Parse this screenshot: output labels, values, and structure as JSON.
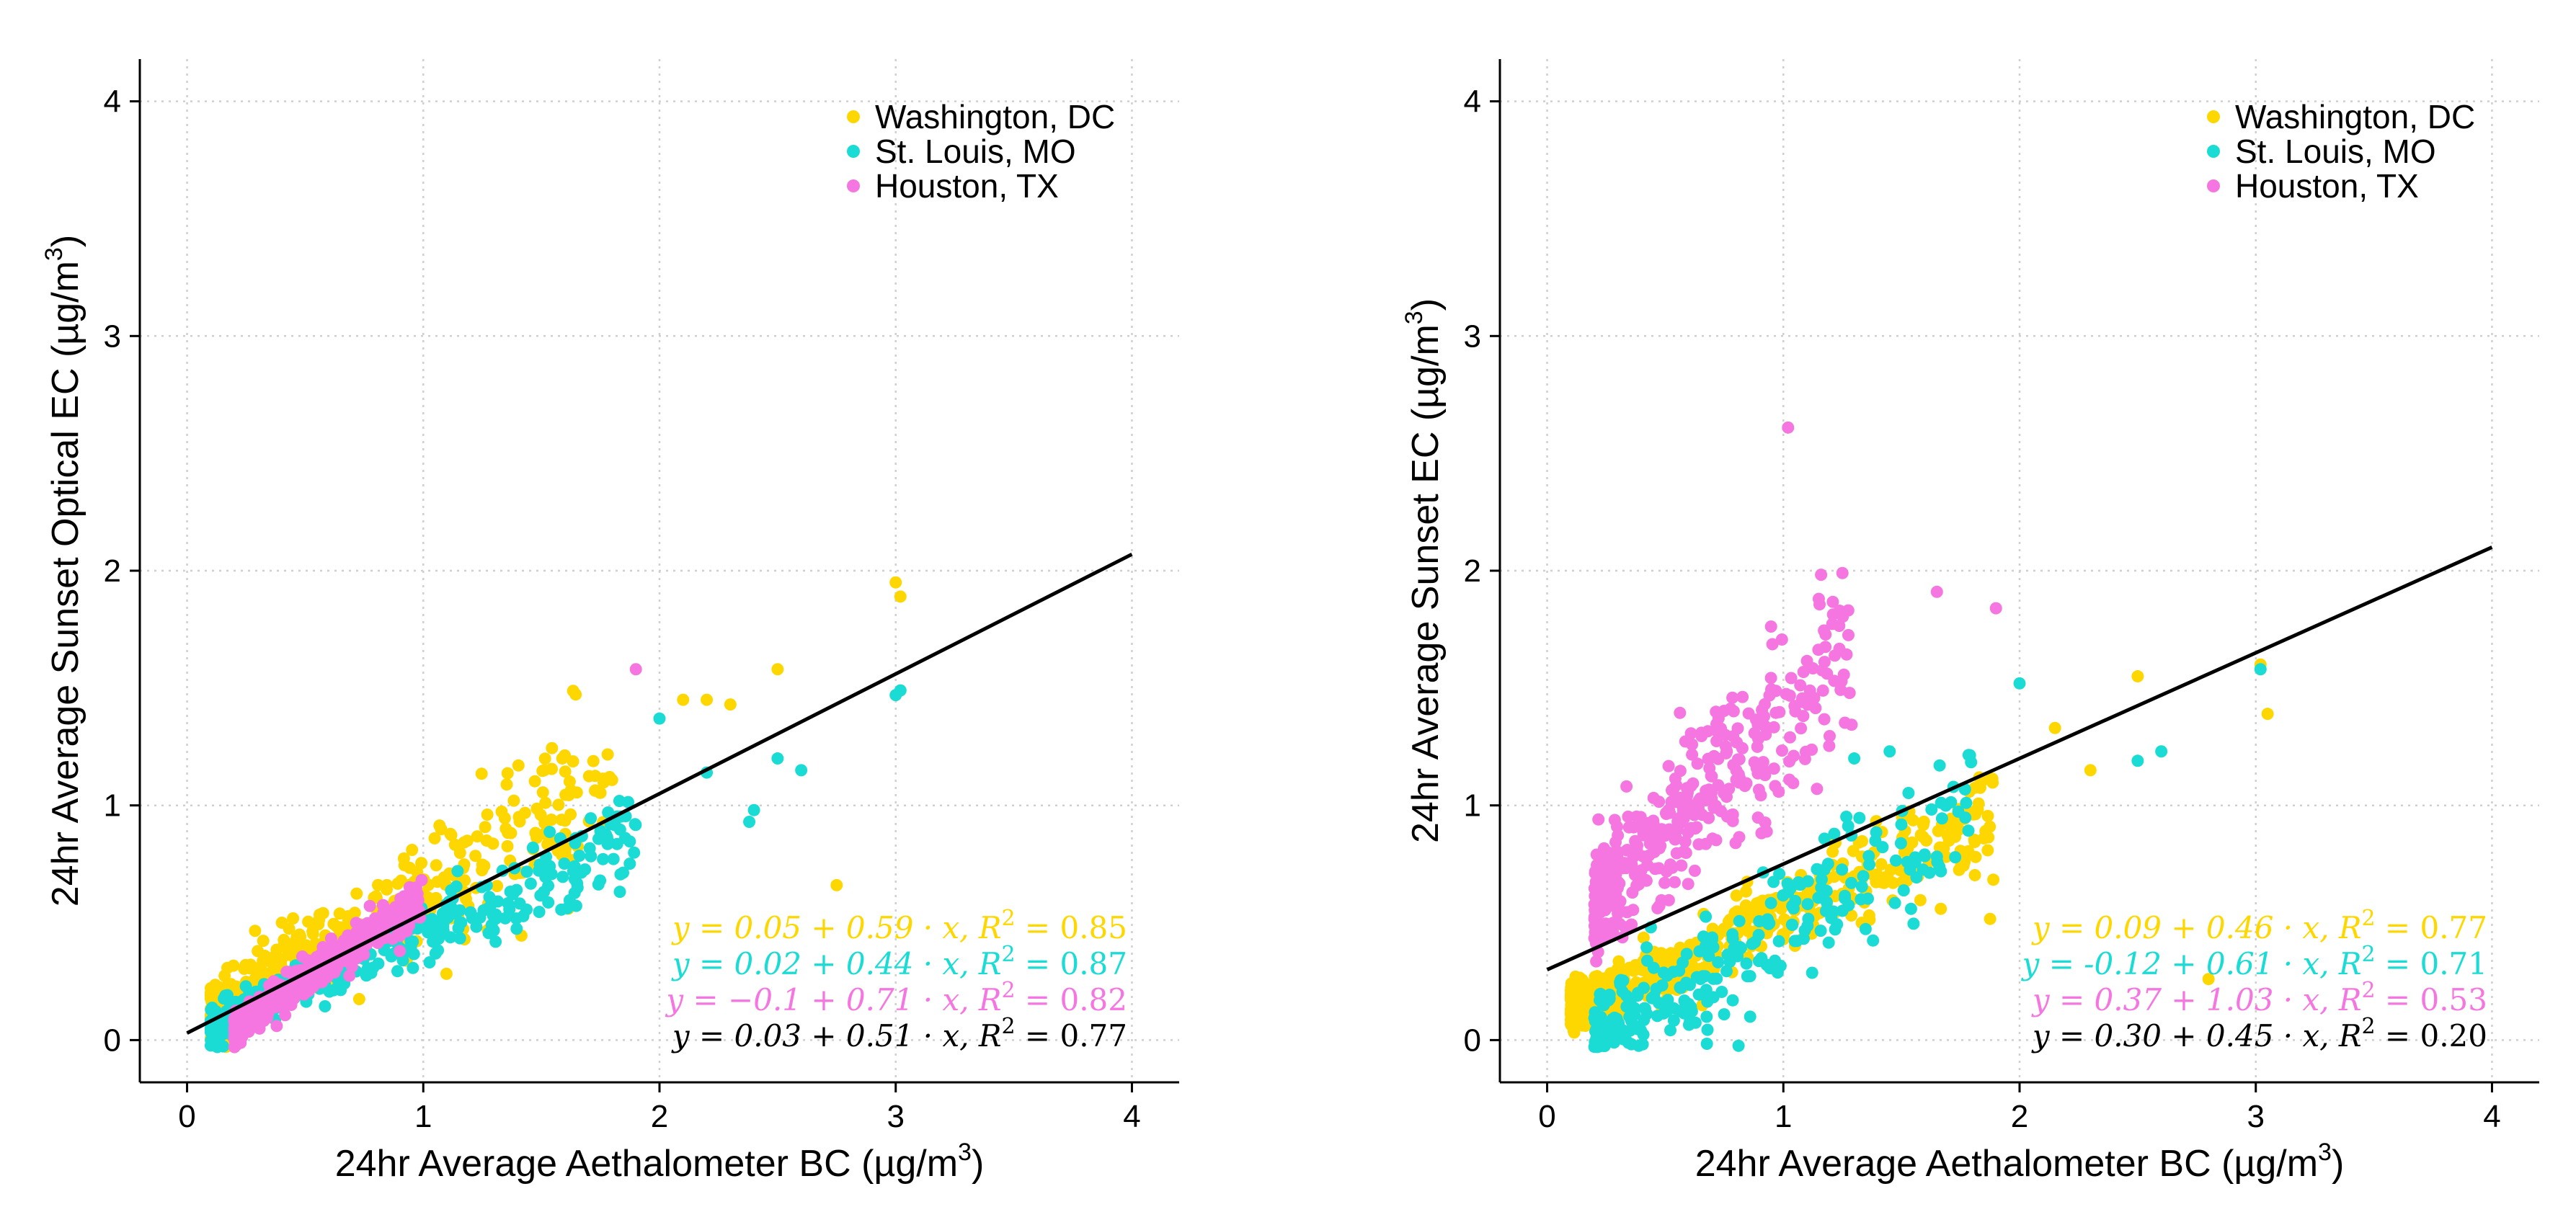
{
  "charts": [
    {
      "type": "scatter",
      "xlabel": "24hr Average Aethalometer BC",
      "xunit": "(µg/m",
      "ylabel": "24hr Average Sunset Optical EC",
      "yunit": "(µg/m",
      "unit_sup": "3",
      "unit_close": ")",
      "xlim": [
        -0.2,
        4.2
      ],
      "ylim": [
        -0.18,
        4.18
      ],
      "xticks": [
        "0",
        "1",
        "2",
        "3",
        "4"
      ],
      "yticks": [
        "0",
        "1",
        "2",
        "3",
        "4"
      ],
      "legend": [
        "Washington, DC",
        "St. Louis, MO",
        "Houston, TX"
      ],
      "colors": [
        "#FFD700",
        "#1ADCD4",
        "#F576E0"
      ],
      "series": [
        {
          "name": "Washington, DC",
          "color": "#FFD700",
          "intercept": 0.05,
          "slope": 0.59,
          "spread": 0.11,
          "xmin": 0.1,
          "xmax": 1.8,
          "n": 500
        },
        {
          "name": "St. Louis, MO",
          "color": "#1ADCD4",
          "intercept": 0.02,
          "slope": 0.44,
          "spread": 0.06,
          "xmin": 0.1,
          "xmax": 1.9,
          "n": 400
        },
        {
          "name": "Houston, TX",
          "color": "#F576E0",
          "intercept": -0.1,
          "slope": 0.71,
          "spread": 0.05,
          "xmin": 0.2,
          "xmax": 1.0,
          "n": 400
        }
      ],
      "outliers": [
        {
          "x": 3.0,
          "y": 1.95,
          "series": 0
        },
        {
          "x": 3.02,
          "y": 1.89,
          "series": 0
        },
        {
          "x": 2.5,
          "y": 1.58,
          "series": 0
        },
        {
          "x": 2.1,
          "y": 1.45,
          "series": 0
        },
        {
          "x": 2.2,
          "y": 1.45,
          "series": 0
        },
        {
          "x": 2.3,
          "y": 1.43,
          "series": 0
        },
        {
          "x": 2.75,
          "y": 0.66,
          "series": 0
        },
        {
          "x": 3.0,
          "y": 1.47,
          "series": 1
        },
        {
          "x": 3.02,
          "y": 1.49,
          "series": 1
        },
        {
          "x": 2.6,
          "y": 1.15,
          "series": 1
        },
        {
          "x": 2.5,
          "y": 1.2,
          "series": 1
        },
        {
          "x": 2.4,
          "y": 0.98,
          "series": 1
        },
        {
          "x": 2.38,
          "y": 0.93,
          "series": 1
        },
        {
          "x": 2.2,
          "y": 1.14,
          "series": 1
        },
        {
          "x": 2.0,
          "y": 1.37,
          "series": 1
        },
        {
          "x": 1.9,
          "y": 1.58,
          "series": 2
        }
      ],
      "fit": {
        "intercept": 0.03,
        "slope": 0.51,
        "x0": 0,
        "x1": 4
      },
      "equations": [
        {
          "text": "y = 0.05 + 0.59 · x,  R",
          "r2": " = 0.85",
          "color": "#FFD700"
        },
        {
          "text": "y = 0.02 + 0.44 · x,  R",
          "r2": " = 0.87",
          "color": "#1ADCD4"
        },
        {
          "text": "y = −0.1 + 0.71 · x,  R",
          "r2": " = 0.82",
          "color": "#F576E0"
        },
        {
          "text": "y = 0.03 + 0.51 · x,  R",
          "r2": " = 0.77",
          "color": "#000000"
        }
      ]
    },
    {
      "type": "scatter",
      "xlabel": "24hr Average Aethalometer BC",
      "xunit": "(µg/m",
      "ylabel": "24hr Average Sunset EC",
      "yunit": "(µg/m",
      "unit_sup": "3",
      "unit_close": ")",
      "xlim": [
        -0.2,
        4.2
      ],
      "ylim": [
        -0.18,
        4.18
      ],
      "xticks": [
        "0",
        "1",
        "2",
        "3",
        "4"
      ],
      "yticks": [
        "0",
        "1",
        "2",
        "3",
        "4"
      ],
      "legend": [
        "Washington, DC",
        "St. Louis, MO",
        "Houston, TX"
      ],
      "colors": [
        "#FFD700",
        "#1ADCD4",
        "#F576E0"
      ],
      "series": [
        {
          "name": "Washington, DC",
          "color": "#FFD700",
          "intercept": 0.09,
          "slope": 0.46,
          "spread": 0.08,
          "xmin": 0.1,
          "xmax": 1.9,
          "n": 500
        },
        {
          "name": "St. Louis, MO",
          "color": "#1ADCD4",
          "intercept": -0.12,
          "slope": 0.61,
          "spread": 0.12,
          "xmin": 0.2,
          "xmax": 1.8,
          "n": 300
        },
        {
          "name": "Houston, TX",
          "color": "#F576E0",
          "intercept": 0.37,
          "slope": 1.03,
          "spread": 0.17,
          "xmin": 0.2,
          "xmax": 1.3,
          "n": 400
        }
      ],
      "outliers": [
        {
          "x": 1.02,
          "y": 2.61,
          "series": 2
        },
        {
          "x": 1.65,
          "y": 1.91,
          "series": 2
        },
        {
          "x": 1.9,
          "y": 1.84,
          "series": 2
        },
        {
          "x": 1.25,
          "y": 1.99,
          "series": 2
        },
        {
          "x": 1.15,
          "y": 1.88,
          "series": 2
        },
        {
          "x": 3.02,
          "y": 1.6,
          "series": 0
        },
        {
          "x": 3.05,
          "y": 1.39,
          "series": 0
        },
        {
          "x": 2.5,
          "y": 1.55,
          "series": 0
        },
        {
          "x": 2.15,
          "y": 1.33,
          "series": 0
        },
        {
          "x": 2.3,
          "y": 1.15,
          "series": 0
        },
        {
          "x": 2.8,
          "y": 0.26,
          "series": 0
        },
        {
          "x": 3.02,
          "y": 1.58,
          "series": 1
        },
        {
          "x": 2.6,
          "y": 1.23,
          "series": 1
        },
        {
          "x": 2.5,
          "y": 1.19,
          "series": 1
        },
        {
          "x": 2.0,
          "y": 1.52,
          "series": 1
        },
        {
          "x": 1.45,
          "y": 1.23,
          "series": 1
        },
        {
          "x": 1.3,
          "y": 1.2,
          "series": 1
        }
      ],
      "fit": {
        "intercept": 0.3,
        "slope": 0.45,
        "x0": 0,
        "x1": 4
      },
      "equations": [
        {
          "text": "y = 0.09 + 0.46 · x,  R",
          "r2": " = 0.77",
          "color": "#FFD700"
        },
        {
          "text": "y = -0.12 + 0.61 · x,  R",
          "r2": " = 0.71",
          "color": "#1ADCD4"
        },
        {
          "text": "y = 0.37 + 1.03 · x,  R",
          "r2": " = 0.53",
          "color": "#F576E0"
        },
        {
          "text": "y = 0.30 + 0.45 · x,  R",
          "r2": " = 0.20",
          "color": "#000000"
        }
      ]
    }
  ]
}
